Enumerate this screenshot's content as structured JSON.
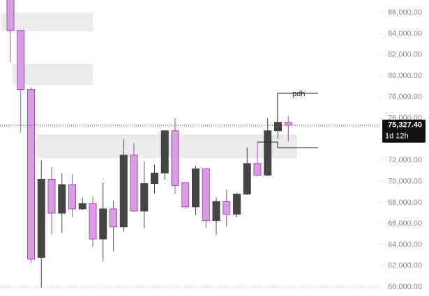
{
  "chart_data": {
    "type": "candlestick",
    "open": [
      87500,
      84300,
      78700,
      62800,
      70200,
      67000,
      69700,
      67400,
      67900,
      64550,
      67400,
      65700,
      72500,
      67200,
      69800,
      70800,
      74800,
      69900,
      67600,
      71200,
      66300,
      68100,
      66900,
      68800,
      71700,
      70600,
      74800,
      75600
    ],
    "high": [
      88000,
      84300,
      78900,
      72000,
      71350,
      70800,
      70700,
      68450,
      68580,
      69900,
      68200,
      74000,
      73650,
      71900,
      71600,
      74800,
      75970,
      69900,
      71500,
      71200,
      68500,
      69200,
      68900,
      73200,
      73700,
      76000,
      75600,
      76230
    ],
    "low": [
      81300,
      74650,
      62300,
      59930,
      65000,
      65100,
      66600,
      67300,
      63760,
      62430,
      63400,
      65200,
      67100,
      65540,
      68900,
      70160,
      68840,
      67400,
      66800,
      65600,
      64940,
      65700,
      66600,
      68700,
      70500,
      70500,
      74000,
      73800
    ],
    "close": [
      84300,
      78700,
      62650,
      70200,
      67000,
      69700,
      67400,
      67900,
      64550,
      67400,
      65700,
      72500,
      67200,
      69800,
      70800,
      74800,
      69600,
      67600,
      71200,
      66300,
      68100,
      66900,
      68800,
      71700,
      70600,
      74800,
      75600,
      75327.4
    ],
    "up_color": "#454545",
    "down_color": "#d79ee2",
    "down_edge": "#a04cb0",
    "ylim": [
      59150,
      87190
    ],
    "yticks": [
      {
        "value": 60000,
        "label": "60,000.00"
      },
      {
        "value": 62000,
        "label": "62,000.00"
      },
      {
        "value": 64000,
        "label": "64,000.00"
      },
      {
        "value": 66000,
        "label": "66,000.00"
      },
      {
        "value": 68000,
        "label": "68,000.00"
      },
      {
        "value": 70000,
        "label": "70,000.00"
      },
      {
        "value": 72000,
        "label": "72,000.00"
      },
      {
        "value": 74000,
        "label": "74,000.00"
      },
      {
        "value": 76000,
        "label": "76,000.00"
      },
      {
        "value": 78000,
        "label": "78,000.00"
      },
      {
        "value": 80000,
        "label": "80,000.00"
      },
      {
        "value": 82000,
        "label": "82,000.00"
      },
      {
        "value": 84000,
        "label": "84,000.00"
      },
      {
        "value": 86000,
        "label": "86,000.00"
      }
    ],
    "last_price": {
      "value": 75327.4,
      "label": "75,327.40"
    },
    "countdown": "1d 12h",
    "annotation": "pdh"
  }
}
